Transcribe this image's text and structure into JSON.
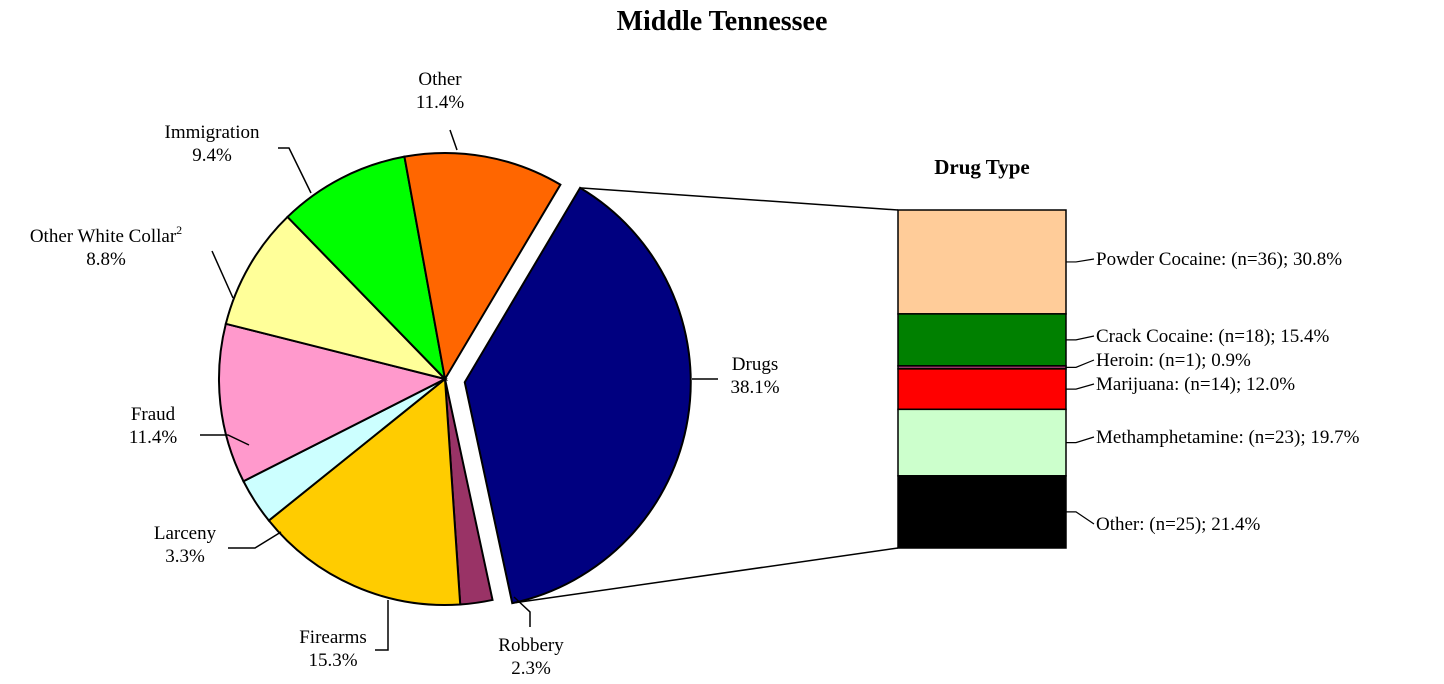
{
  "chart_data": [
    {
      "type": "pie",
      "title": "Middle Tennessee",
      "unit": "%",
      "slices": [
        {
          "label": "Drugs",
          "value": 38.1,
          "display": "38.1%",
          "color": "#000080",
          "exploded": true
        },
        {
          "label": "Robbery",
          "value": 2.3,
          "display": "2.3%",
          "color": "#993366"
        },
        {
          "label": "Firearms",
          "value": 15.3,
          "display": "15.3%",
          "color": "#FFCC00"
        },
        {
          "label": "Larceny",
          "value": 3.3,
          "display": "3.3%",
          "color": "#CCFFFF"
        },
        {
          "label": "Fraud",
          "value": 11.4,
          "display": "11.4%",
          "color": "#FF99CC"
        },
        {
          "label": "Other White Collar",
          "superscript": "2",
          "value": 8.8,
          "display": "8.8%",
          "color": "#FFFF99"
        },
        {
          "label": "Immigration",
          "value": 9.4,
          "display": "9.4%",
          "color": "#00FF00"
        },
        {
          "label": "Other",
          "value": 11.4,
          "display": "11.4%",
          "color": "#FF6600"
        }
      ]
    },
    {
      "type": "bar",
      "stacked": true,
      "title": "Drug Type",
      "segments": [
        {
          "label": "Powder Cocaine",
          "n": 36,
          "value": 30.8,
          "text": "Powder Cocaine: (n=36); 30.8%",
          "color": "#FFCC99"
        },
        {
          "label": "Crack Cocaine",
          "n": 18,
          "value": 15.4,
          "text": "Crack Cocaine: (n=18); 15.4%",
          "color": "#008000"
        },
        {
          "label": "Heroin",
          "n": 1,
          "value": 0.9,
          "text": "Heroin: (n=1); 0.9%",
          "color": "#993366"
        },
        {
          "label": "Marijuana",
          "n": 14,
          "value": 12.0,
          "text": "Marijuana: (n=14); 12.0%",
          "color": "#FF0000"
        },
        {
          "label": "Methamphetamine",
          "n": 23,
          "value": 19.7,
          "text": "Methamphetamine: (n=23); 19.7%",
          "color": "#CCFFCC"
        },
        {
          "label": "Other",
          "n": 25,
          "value": 21.4,
          "text": "Other: (n=25); 21.4%",
          "color": "#000000"
        }
      ]
    }
  ]
}
